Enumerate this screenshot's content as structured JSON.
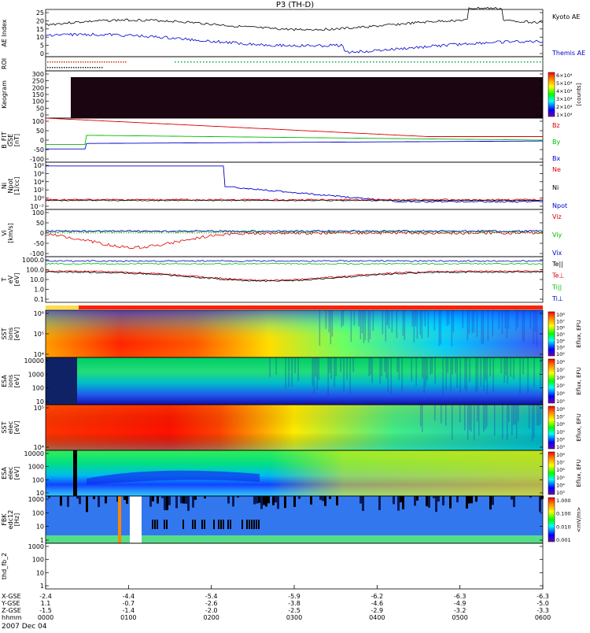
{
  "title": "P3 (TH-D)",
  "date_label": "2007 Dec 04",
  "chart_data": {
    "type": "multi-panel time series",
    "x": {
      "rows": [
        {
          "label": "X-GSE",
          "values": [
            "-2.4",
            "-4.4",
            "-5.4",
            "-5.9",
            "-6.2",
            "-6.3",
            "-6.3"
          ]
        },
        {
          "label": "Y-GSE",
          "values": [
            "1.1",
            "-0.7",
            "-2.6",
            "-3.8",
            "-4.6",
            "-4.9",
            "-5.0"
          ]
        },
        {
          "label": "Z-GSE",
          "values": [
            "-1.5",
            "-1.4",
            "-2.0",
            "-2.5",
            "-2.9",
            "-3.2",
            "-3.3"
          ]
        },
        {
          "label": "hhmm",
          "values": [
            "0000",
            "0100",
            "0200",
            "0300",
            "0400",
            "0500",
            "0600"
          ]
        }
      ]
    },
    "panels": [
      {
        "id": "ae",
        "ylabel": [
          "AE Index"
        ],
        "yticks": [
          "25",
          "20",
          "15",
          "10",
          "5",
          "0"
        ],
        "series": [
          {
            "name": "Kyoto AE",
            "color": "#000000"
          },
          {
            "name": "Themis AE",
            "color": "#0000cc"
          }
        ]
      },
      {
        "id": "roi",
        "ylabel": [
          "ROI"
        ],
        "yticks": [],
        "series": []
      },
      {
        "id": "keogram",
        "ylabel": [
          "Keogram"
        ],
        "yticks": [
          "300",
          "250",
          "200",
          "150",
          "100",
          "50",
          "0"
        ],
        "colorbar": {
          "label": "[counts]",
          "ticks": [
            "6×10⁴",
            "5×10⁴",
            "4×10⁴",
            "3×10⁴",
            "2×10⁴",
            "1×10⁴"
          ]
        },
        "series": []
      },
      {
        "id": "bfit",
        "ylabel": [
          "B_FIT",
          "GSE",
          "[nT]"
        ],
        "yticks": [
          "100",
          "50",
          "0",
          "-50",
          "-100"
        ],
        "series": [
          {
            "name": "Bz",
            "color": "#dd0000"
          },
          {
            "name": "By",
            "color": "#00bb00"
          },
          {
            "name": "Bx",
            "color": "#0000cc"
          }
        ]
      },
      {
        "id": "ni",
        "ylabel": [
          "Ni",
          "Npot",
          "[1/cc]"
        ],
        "yticks": [
          "10⁸",
          "10⁶",
          "10⁴",
          "10²",
          "10⁰",
          "10⁻²"
        ],
        "series": [
          {
            "name": "Ne",
            "color": "#dd0000"
          },
          {
            "name": "Ni",
            "color": "#000000"
          },
          {
            "name": "Npot",
            "color": "#0000cc"
          }
        ]
      },
      {
        "id": "vi",
        "ylabel": [
          "Vi",
          "[km/s]"
        ],
        "yticks": [
          "100",
          "50",
          "0",
          "-50",
          "-100"
        ],
        "series": [
          {
            "name": "Viz",
            "color": "#dd0000"
          },
          {
            "name": "Viy",
            "color": "#00bb00"
          },
          {
            "name": "Vix",
            "color": "#0000cc"
          }
        ]
      },
      {
        "id": "te",
        "ylabel": [
          "T",
          "eV",
          "[eV]"
        ],
        "yticks": [
          "1000.0",
          "100.0",
          "10.0",
          "1.0",
          "0.1"
        ],
        "series": [
          {
            "name": "Te||",
            "color": "#000000"
          },
          {
            "name": "Te⊥",
            "color": "#dd0000"
          },
          {
            "name": "Ti||",
            "color": "#00bb00"
          },
          {
            "name": "Ti⊥",
            "color": "#0000cc"
          }
        ]
      },
      {
        "id": "sst_i",
        "ylabel": [
          "SST",
          "ions",
          "[eV]"
        ],
        "yticks": [
          "10⁶",
          "10⁵",
          "10⁴"
        ],
        "colorbar": {
          "label": "Eflux, EFU",
          "ticks": [
            "10⁸",
            "10⁷",
            "10⁶",
            "10⁵",
            "10⁴",
            "10³",
            "10²"
          ]
        },
        "series": []
      },
      {
        "id": "esa_i",
        "ylabel": [
          "ESA",
          "ions",
          "[eV]"
        ],
        "yticks": [
          "10000",
          "1000",
          "100",
          "10"
        ],
        "colorbar": {
          "label": "Eflux, EFU",
          "ticks": [
            "10⁸",
            "10⁷",
            "10⁶",
            "10⁵",
            "10⁴",
            "10³"
          ]
        },
        "series": []
      },
      {
        "id": "sst_e",
        "ylabel": [
          "SST",
          "elec",
          "[eV]"
        ],
        "yticks": [
          "10⁵",
          "10⁴"
        ],
        "colorbar": {
          "label": "Eflux, EFU",
          "ticks": [
            "10⁸",
            "10⁷",
            "10⁶",
            "10⁵",
            "10⁴",
            "10³"
          ]
        },
        "series": []
      },
      {
        "id": "esa_e",
        "ylabel": [
          "ESA",
          "elec",
          "[eV]"
        ],
        "yticks": [
          "10000",
          "1000",
          "100",
          "10"
        ],
        "colorbar": {
          "label": "Eflux, EFU",
          "ticks": [
            "10⁸",
            "10⁷",
            "10⁶",
            "10⁵",
            "10⁴",
            "10³"
          ]
        },
        "series": []
      },
      {
        "id": "fbk",
        "ylabel": [
          "FBK",
          "edc12",
          "[Hz]"
        ],
        "yticks": [
          "1000",
          "100",
          "10",
          "1"
        ],
        "colorbar": {
          "label": "<mV/m>",
          "ticks": [
            "1.000",
            "0.100",
            "0.010",
            "0.001"
          ]
        },
        "series": []
      },
      {
        "id": "fb2",
        "ylabel": [
          "thd_fb_2"
        ],
        "yticks": [
          "1000",
          "100",
          "10",
          "1"
        ],
        "series": []
      }
    ]
  }
}
